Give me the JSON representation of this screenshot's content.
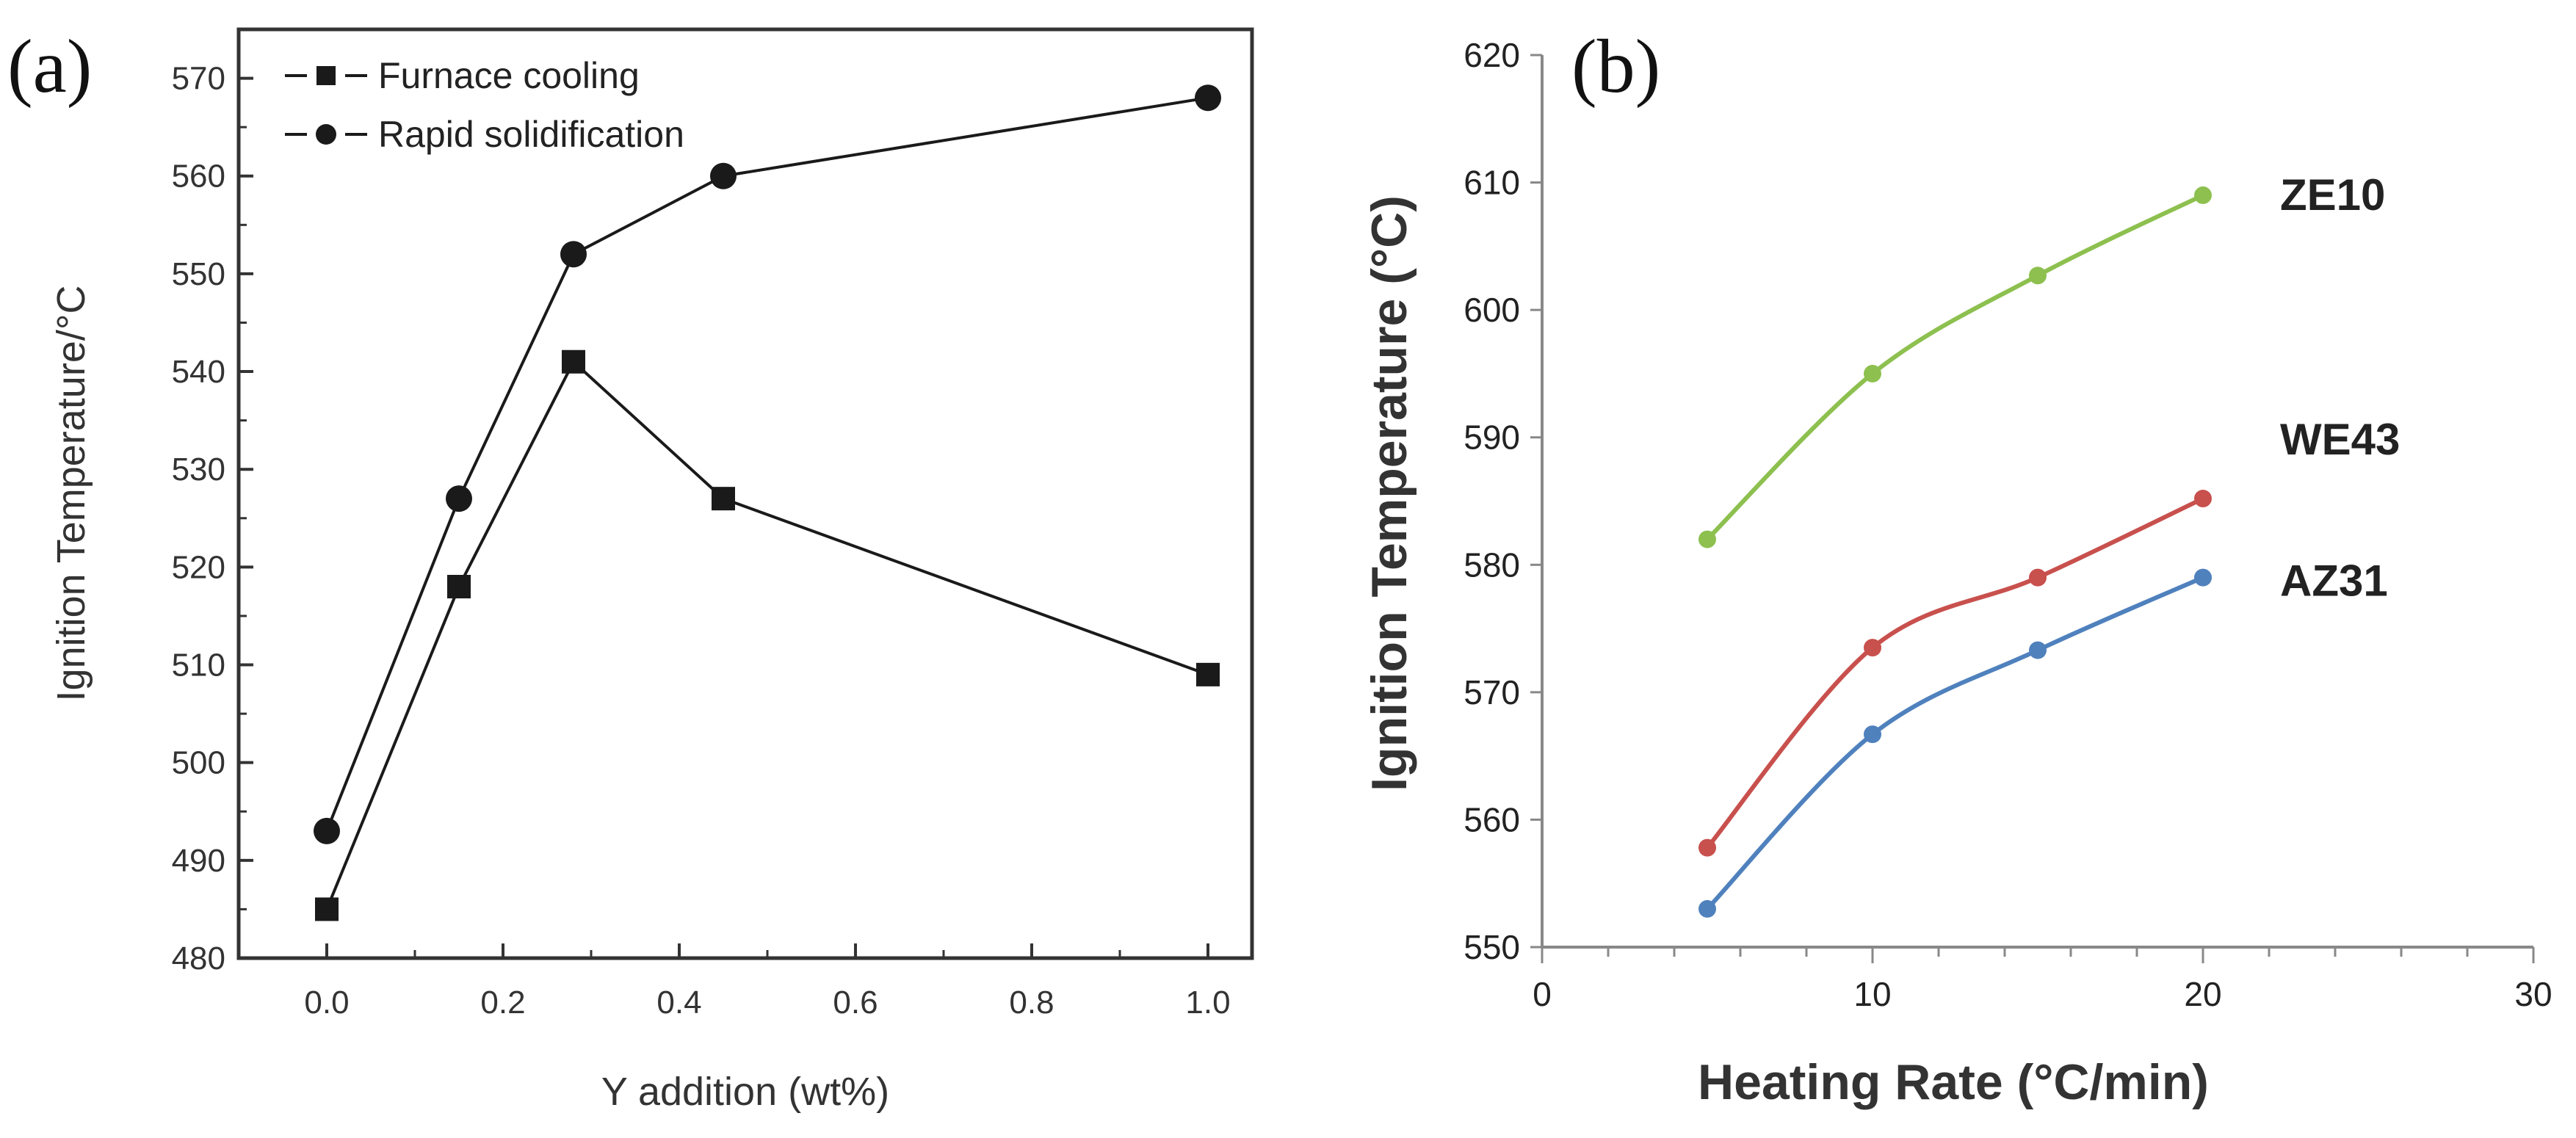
{
  "chart_data": [
    {
      "panel_label": "(a)",
      "type": "line",
      "xlabel": "Y addition (wt%)",
      "ylabel": "Ignition Temperature/°C",
      "xlim": [
        -0.1,
        1.05
      ],
      "ylim": [
        480,
        575
      ],
      "xticks": [
        0.0,
        0.2,
        0.4,
        0.6,
        0.8,
        1.0
      ],
      "xtick_labels": [
        "0.0",
        "0.2",
        "0.4",
        "0.6",
        "0.8",
        "1.0"
      ],
      "yticks": [
        480,
        490,
        500,
        510,
        520,
        530,
        540,
        550,
        560,
        570
      ],
      "grid": false,
      "legend_position": "top-left",
      "series": [
        {
          "name": "Furnace cooling",
          "marker": "square",
          "color": "#1a1a1a",
          "x": [
            0.0,
            0.15,
            0.28,
            0.45,
            1.0
          ],
          "y": [
            485,
            518,
            541,
            527,
            509
          ]
        },
        {
          "name": "Rapid solidification",
          "marker": "circle",
          "color": "#1a1a1a",
          "x": [
            0.0,
            0.15,
            0.28,
            0.45,
            1.0
          ],
          "y": [
            493,
            527,
            552,
            560,
            568
          ]
        }
      ]
    },
    {
      "panel_label": "(b)",
      "type": "line",
      "xlabel": "Heating Rate (°C/min)",
      "ylabel": "Ignition Temperature (°C)",
      "xlim": [
        0,
        30
      ],
      "ylim": [
        550,
        620
      ],
      "xticks": [
        0,
        10,
        20,
        30
      ],
      "yticks": [
        550,
        560,
        570,
        580,
        590,
        600,
        610,
        620
      ],
      "grid": false,
      "legend_position": "none",
      "series": [
        {
          "name": "ZE10",
          "color": "#8dc04f",
          "x": [
            5,
            10,
            15,
            20
          ],
          "y": [
            582,
            595,
            602.7,
            609
          ]
        },
        {
          "name": "WE43",
          "color": "#c8504d",
          "x": [
            5,
            10,
            15,
            20
          ],
          "y": [
            557.8,
            573.5,
            579,
            585.2
          ]
        },
        {
          "name": "AZ31",
          "color": "#4f81bd",
          "x": [
            5,
            10,
            15,
            20
          ],
          "y": [
            553,
            566.7,
            573.3,
            579
          ]
        }
      ]
    }
  ]
}
